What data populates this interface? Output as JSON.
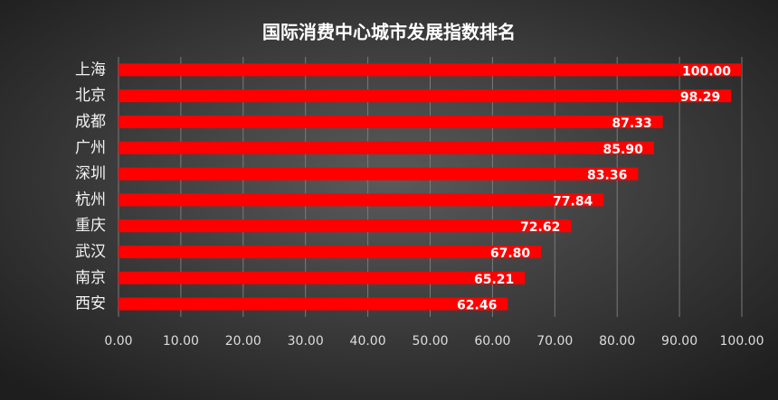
{
  "chart_data": {
    "type": "hbar",
    "title": "国际消费中心城市发展指数排名",
    "categories": [
      "上海",
      "北京",
      "成都",
      "广州",
      "深圳",
      "杭州",
      "重庆",
      "武汉",
      "南京",
      "西安"
    ],
    "values": [
      100.0,
      98.29,
      87.33,
      85.9,
      83.36,
      77.84,
      72.62,
      67.8,
      65.21,
      62.46
    ],
    "value_labels": [
      "100.00",
      "98.29",
      "87.33",
      "85.90",
      "83.36",
      "77.84",
      "72.62",
      "67.80",
      "65.21",
      "62.46"
    ],
    "color": "#ff0000",
    "xlim": [
      0,
      100
    ],
    "xticks": [
      {
        "value": 0,
        "label": "0.00"
      },
      {
        "value": 10,
        "label": "10.00"
      },
      {
        "value": 20,
        "label": "20.00"
      },
      {
        "value": 30,
        "label": "30.00"
      },
      {
        "value": 40,
        "label": "40.00"
      },
      {
        "value": 50,
        "label": "50.00"
      },
      {
        "value": 60,
        "label": "60.00"
      },
      {
        "value": 70,
        "label": "70.00"
      },
      {
        "value": 80,
        "label": "80.00"
      },
      {
        "value": 90,
        "label": "90.00"
      },
      {
        "value": 100,
        "label": "100.00"
      }
    ],
    "grid": true
  }
}
